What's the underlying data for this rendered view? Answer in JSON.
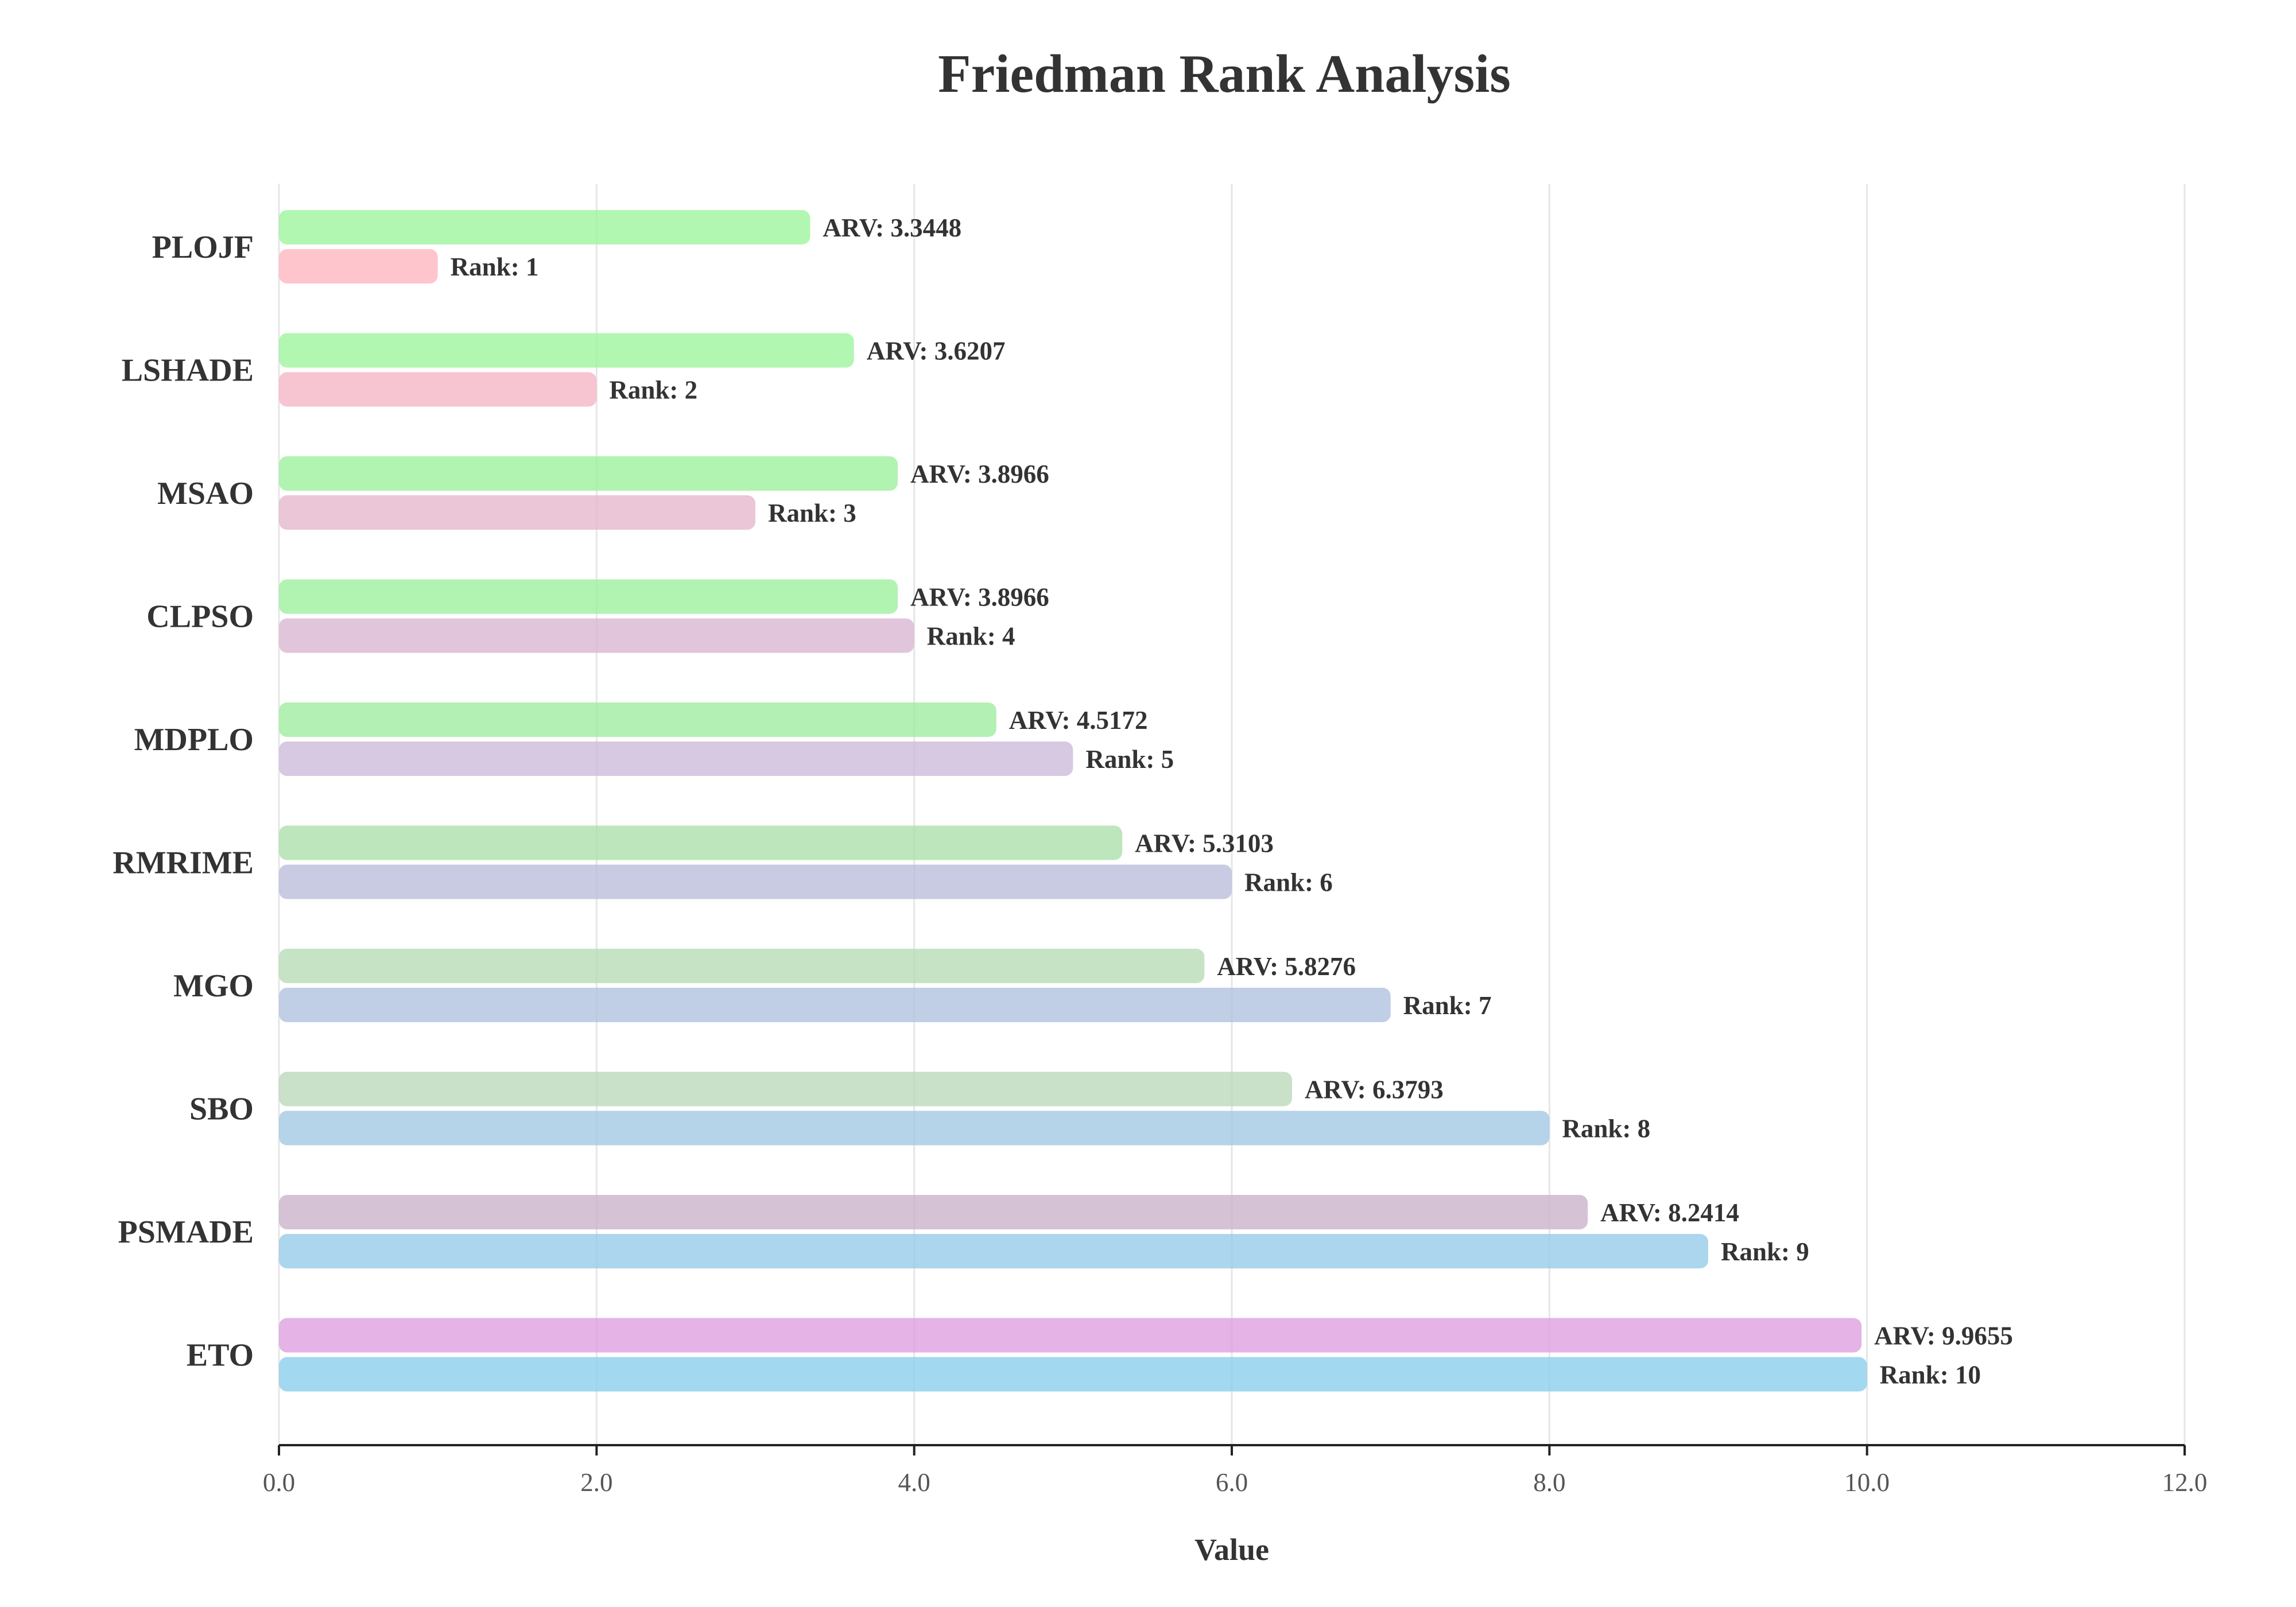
{
  "chart_data": {
    "type": "bar",
    "orientation": "horizontal",
    "title": "Friedman Rank Analysis",
    "xlabel": "Value",
    "ylabel": "",
    "xlim": [
      0,
      12
    ],
    "xticks": [
      "0.0",
      "2.0",
      "4.0",
      "6.0",
      "8.0",
      "10.0",
      "12.0"
    ],
    "grid": true,
    "categories": [
      "PLOJF",
      "LSHADE",
      "MSAO",
      "CLPSO",
      "MDPLO",
      "RMRIME",
      "MGO",
      "SBO",
      "PSMADE",
      "ETO"
    ],
    "series": [
      {
        "key": "arv",
        "label_prefix": "ARV: ",
        "values": [
          3.3448,
          3.6207,
          3.8966,
          3.8966,
          4.5172,
          5.3103,
          5.8276,
          6.3793,
          8.2414,
          9.9655
        ],
        "value_text": [
          "3.3448",
          "3.6207",
          "3.8966",
          "3.8966",
          "4.5172",
          "5.3103",
          "5.8276",
          "6.3793",
          "8.2414",
          "9.9655"
        ],
        "colors": [
          "#9ef59e",
          "#9ef59e",
          "#9ef09e",
          "#9ef09e",
          "#a0eca0",
          "#ade0ad",
          "#b8dcb8",
          "#bcd8bc",
          "#cbb4cb",
          "#dea0de"
        ]
      },
      {
        "key": "rank",
        "label_prefix": "Rank: ",
        "values": [
          1,
          2,
          3,
          4,
          5,
          6,
          7,
          8,
          9,
          10
        ],
        "value_text": [
          "1",
          "2",
          "3",
          "4",
          "5",
          "6",
          "7",
          "8",
          "9",
          "10"
        ],
        "colors": [
          "#ffb6c1",
          "#f4b6c6",
          "#e6b8cc",
          "#dab8d2",
          "#cdbcd9",
          "#bcbedb",
          "#b0c2e0",
          "#a2c8e4",
          "#96cce8",
          "#8ccfec"
        ]
      }
    ]
  }
}
